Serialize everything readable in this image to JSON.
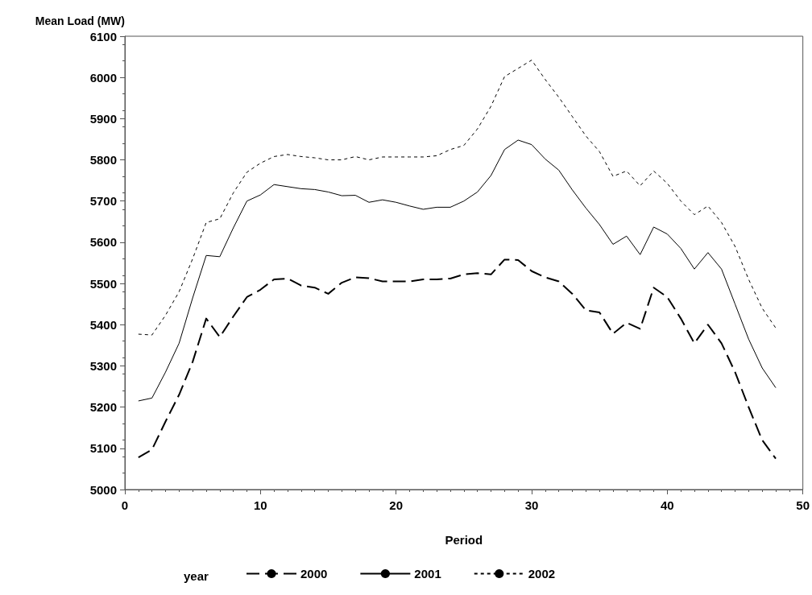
{
  "chart_data": {
    "type": "line",
    "xlabel": "Period",
    "ylabel": "Mean Load (MW)",
    "legend_title": "year",
    "legend": "bottom",
    "grid": false,
    "marker": "none",
    "x": [
      1,
      2,
      3,
      4,
      5,
      6,
      7,
      8,
      9,
      10,
      11,
      12,
      13,
      14,
      15,
      16,
      17,
      18,
      19,
      20,
      21,
      22,
      23,
      24,
      25,
      26,
      27,
      28,
      29,
      30,
      31,
      32,
      33,
      34,
      35,
      36,
      37,
      38,
      39,
      40,
      41,
      42,
      43,
      44,
      45,
      46,
      47,
      48
    ],
    "xlim": [
      0,
      50
    ],
    "xticks": [
      0,
      10,
      20,
      30,
      40,
      50
    ],
    "ylim": [
      5000,
      6100
    ],
    "yticks": [
      5000,
      5100,
      5200,
      5300,
      5400,
      5500,
      5600,
      5700,
      5800,
      5900,
      6000,
      6100
    ],
    "series": [
      {
        "name": "2000",
        "color": "#000000",
        "line_style": "dashed",
        "values": [
          5078,
          5097,
          5165,
          5230,
          5310,
          5415,
          5370,
          5420,
          5467,
          5485,
          5510,
          5512,
          5495,
          5490,
          5475,
          5502,
          5515,
          5513,
          5505,
          5505,
          5505,
          5510,
          5510,
          5512,
          5522,
          5525,
          5522,
          5558,
          5557,
          5530,
          5515,
          5505,
          5475,
          5435,
          5430,
          5378,
          5405,
          5390,
          5490,
          5467,
          5415,
          5355,
          5400,
          5355,
          5285,
          5200,
          5120,
          5075
        ]
      },
      {
        "name": "2001",
        "color": "#000000",
        "line_style": "solid",
        "values": [
          5215,
          5222,
          5285,
          5355,
          5465,
          5568,
          5565,
          5635,
          5700,
          5715,
          5740,
          5735,
          5730,
          5728,
          5722,
          5713,
          5714,
          5697,
          5703,
          5697,
          5688,
          5680,
          5685,
          5685,
          5700,
          5722,
          5762,
          5825,
          5848,
          5837,
          5802,
          5775,
          5727,
          5683,
          5643,
          5595,
          5615,
          5570,
          5637,
          5620,
          5585,
          5535,
          5575,
          5535,
          5450,
          5365,
          5295,
          5247
        ]
      },
      {
        "name": "2002",
        "color": "#000000",
        "line_style": "dotted",
        "values": [
          5377,
          5375,
          5423,
          5480,
          5560,
          5648,
          5657,
          5720,
          5770,
          5792,
          5808,
          5813,
          5808,
          5805,
          5800,
          5800,
          5808,
          5800,
          5807,
          5807,
          5807,
          5807,
          5810,
          5825,
          5835,
          5875,
          5930,
          6002,
          6022,
          6042,
          5995,
          5952,
          5905,
          5858,
          5820,
          5760,
          5773,
          5737,
          5773,
          5743,
          5700,
          5667,
          5688,
          5648,
          5590,
          5510,
          5440,
          5392
        ]
      }
    ]
  }
}
